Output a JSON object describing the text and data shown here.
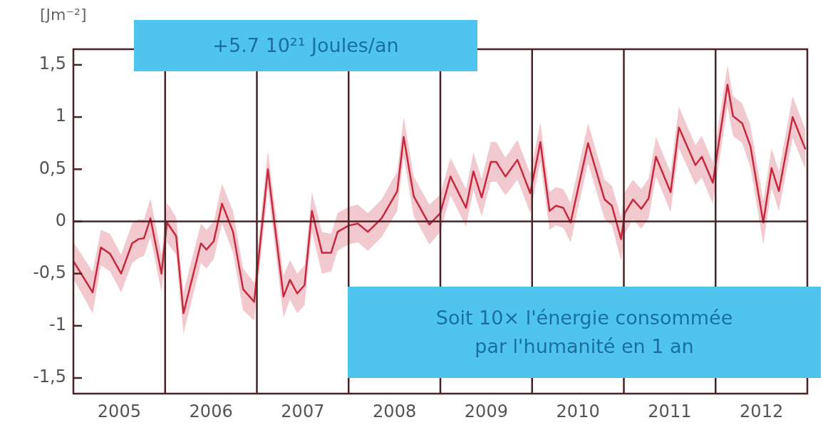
{
  "chart_data": {
    "type": "line",
    "ylabel": "[Jm⁻²]",
    "annotations": [
      "+5.7 10²¹ Joules/an",
      "Soit 10× l'énergie consommée par l'humanité en 1 an"
    ],
    "xlim": [
      2005,
      2013
    ],
    "xticks": [
      {
        "value": 2005.5,
        "label": "2005"
      },
      {
        "value": 2006.5,
        "label": "2006"
      },
      {
        "value": 2007.5,
        "label": "2007"
      },
      {
        "value": 2008.5,
        "label": "2008"
      },
      {
        "value": 2009.5,
        "label": "2009"
      },
      {
        "value": 2010.5,
        "label": "2010"
      },
      {
        "value": 2011.5,
        "label": "2011"
      },
      {
        "value": 2012.5,
        "label": "2012"
      }
    ],
    "ylim": [
      -1.65,
      1.65
    ],
    "yticks": [
      {
        "value": -1.5,
        "label": "-1,5"
      },
      -1,
      {
        "value": -0.5,
        "label": "-0,5"
      },
      0,
      {
        "value": 0.5,
        "label": "0,5"
      },
      1,
      {
        "value": 1.5,
        "label": "1,5"
      }
    ],
    "grid": false,
    "legend": false,
    "marker": "none",
    "line_style": "solid",
    "ref_lines": [
      {
        "axis": "y",
        "value": 0
      },
      {
        "axis": "x",
        "value": 2006
      },
      {
        "axis": "x",
        "value": 2007
      },
      {
        "axis": "x",
        "value": 2008
      },
      {
        "axis": "x",
        "value": 2009
      },
      {
        "axis": "x",
        "value": 2010
      },
      {
        "axis": "x",
        "value": 2011
      },
      {
        "axis": "x",
        "value": 2012
      }
    ],
    "series": [
      {
        "color": "#c8283c",
        "x": [
          2005.0,
          2005.21,
          2005.3,
          2005.4,
          2005.52,
          2005.64,
          2005.71,
          2005.77,
          2005.84,
          2005.96,
          2006.02,
          2006.12,
          2006.2,
          2006.39,
          2006.45,
          2006.53,
          2006.62,
          2006.74,
          2006.85,
          2006.97,
          2007.12,
          2007.29,
          2007.36,
          2007.44,
          2007.52,
          2007.6,
          2007.71,
          2007.81,
          2007.88,
          2008.0,
          2008.1,
          2008.21,
          2008.36,
          2008.53,
          2008.6,
          2008.71,
          2008.88,
          2009.0,
          2009.11,
          2009.28,
          2009.36,
          2009.45,
          2009.55,
          2009.61,
          2009.71,
          2009.84,
          2009.98,
          2010.09,
          2010.19,
          2010.26,
          2010.34,
          2010.42,
          2010.61,
          2010.79,
          2010.87,
          2010.97,
          2011.01,
          2011.1,
          2011.19,
          2011.27,
          2011.35,
          2011.51,
          2011.6,
          2011.78,
          2011.85,
          2011.97,
          2012.13,
          2012.19,
          2012.29,
          2012.38,
          2012.52,
          2012.61,
          2012.69,
          2012.84,
          2012.98
        ],
        "values": [
          -0.38,
          -0.68,
          -0.25,
          -0.31,
          -0.5,
          -0.21,
          -0.17,
          -0.16,
          0.03,
          -0.5,
          -0.01,
          -0.14,
          -0.88,
          -0.21,
          -0.27,
          -0.19,
          0.17,
          -0.1,
          -0.65,
          -0.77,
          0.5,
          -0.72,
          -0.56,
          -0.69,
          -0.61,
          0.1,
          -0.3,
          -0.3,
          -0.1,
          -0.04,
          -0.02,
          -0.1,
          0.03,
          0.29,
          0.81,
          0.24,
          -0.03,
          0.08,
          0.43,
          0.13,
          0.48,
          0.23,
          0.57,
          0.57,
          0.43,
          0.59,
          0.27,
          0.76,
          0.1,
          0.15,
          0.13,
          -0.01,
          0.75,
          0.21,
          0.15,
          -0.17,
          0.08,
          0.21,
          0.12,
          0.22,
          0.62,
          0.28,
          0.9,
          0.54,
          0.62,
          0.37,
          1.31,
          1.01,
          0.94,
          0.72,
          -0.01,
          0.51,
          0.29,
          1.0,
          0.69
        ],
        "lower": [
          -0.55,
          -0.88,
          -0.42,
          -0.48,
          -0.68,
          -0.4,
          -0.35,
          -0.33,
          -0.15,
          -0.68,
          -0.2,
          -0.32,
          -1.08,
          -0.4,
          -0.45,
          -0.36,
          -0.02,
          -0.3,
          -0.85,
          -0.95,
          0.32,
          -0.92,
          -0.75,
          -0.88,
          -0.8,
          -0.1,
          -0.5,
          -0.48,
          -0.28,
          -0.22,
          -0.2,
          -0.28,
          -0.15,
          0.1,
          0.62,
          0.05,
          -0.22,
          -0.1,
          0.25,
          -0.05,
          0.3,
          0.05,
          0.38,
          0.38,
          0.25,
          0.4,
          0.08,
          0.57,
          -0.08,
          -0.04,
          -0.06,
          -0.2,
          0.56,
          0.02,
          -0.04,
          -0.38,
          -0.12,
          0.02,
          -0.07,
          0.03,
          0.43,
          0.09,
          0.7,
          0.35,
          0.42,
          0.17,
          1.1,
          0.82,
          0.75,
          0.52,
          -0.22,
          0.32,
          0.1,
          0.8,
          0.5
        ],
        "upper": [
          -0.2,
          -0.48,
          -0.08,
          -0.12,
          -0.32,
          -0.02,
          0.02,
          0.02,
          0.22,
          -0.32,
          0.18,
          0.04,
          -0.68,
          -0.02,
          -0.08,
          0.0,
          0.36,
          0.1,
          -0.45,
          -0.59,
          0.68,
          -0.52,
          -0.37,
          -0.5,
          -0.42,
          0.28,
          -0.1,
          -0.12,
          0.08,
          0.14,
          0.16,
          0.08,
          0.21,
          0.48,
          1.0,
          0.43,
          0.16,
          0.26,
          0.61,
          0.31,
          0.66,
          0.41,
          0.76,
          0.76,
          0.61,
          0.78,
          0.46,
          0.95,
          0.28,
          0.33,
          0.31,
          0.18,
          0.94,
          0.4,
          0.34,
          0.04,
          0.28,
          0.4,
          0.31,
          0.41,
          0.81,
          0.47,
          1.1,
          0.73,
          0.82,
          0.57,
          1.5,
          1.2,
          1.13,
          0.92,
          0.2,
          0.7,
          0.48,
          1.2,
          0.88
        ]
      }
    ]
  }
}
